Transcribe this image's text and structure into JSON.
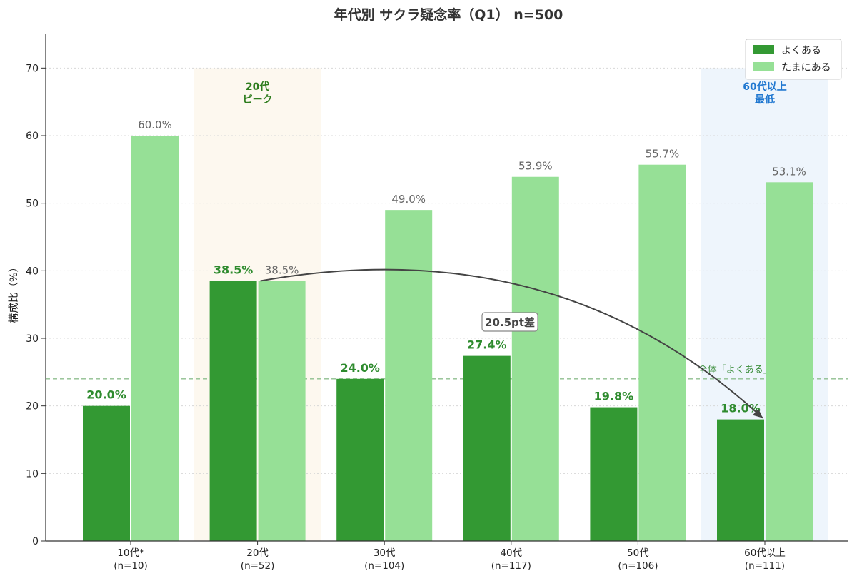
{
  "colors": {
    "often": "#339933",
    "sometimes": "#96e096",
    "highlight_peak_bg": "#fdf8ef",
    "highlight_low_bg": "#eef5fc",
    "ref_line": "#8fbf8f",
    "arrow": "#444444"
  },
  "chart_data": {
    "type": "bar",
    "title": "年代別 サクラ疑念率（Q1） n=500",
    "xlabel": "",
    "ylabel": "構成比（%）",
    "ylim": [
      0,
      75
    ],
    "yticks": [
      0,
      10,
      20,
      30,
      40,
      50,
      60,
      70
    ],
    "grid": "horizontal-dotted",
    "legend_position": "top-right",
    "categories": [
      {
        "label": "10代*",
        "sub": "(n=10)"
      },
      {
        "label": "20代",
        "sub": "(n=52)"
      },
      {
        "label": "30代",
        "sub": "(n=104)"
      },
      {
        "label": "40代",
        "sub": "(n=117)"
      },
      {
        "label": "50代",
        "sub": "(n=106)"
      },
      {
        "label": "60代以上",
        "sub": "(n=111)"
      }
    ],
    "series": [
      {
        "name": "よくある",
        "values": [
          20.0,
          38.5,
          24.0,
          27.4,
          19.8,
          18.0
        ],
        "labels": [
          "20.0%",
          "38.5%",
          "24.0%",
          "27.4%",
          "19.8%",
          "18.0%"
        ]
      },
      {
        "name": "たまにある",
        "values": [
          60.0,
          38.5,
          49.0,
          53.9,
          55.7,
          53.1
        ],
        "labels": [
          "60.0%",
          "38.5%",
          "49.0%",
          "53.9%",
          "55.7%",
          "53.1%"
        ]
      }
    ],
    "reference_line": {
      "value": 24.0,
      "label": "全体「よくある」24.0%"
    },
    "highlights": [
      {
        "category_index": 1,
        "line1": "20代",
        "line2": "ピーク",
        "style": "peak"
      },
      {
        "category_index": 5,
        "line1": "60代以上",
        "line2": "最低",
        "style": "low"
      }
    ],
    "annotation": {
      "text": "20.5pt差",
      "from_category": 1,
      "from_value": 38.5,
      "to_category": 5,
      "to_value": 18.0
    }
  }
}
